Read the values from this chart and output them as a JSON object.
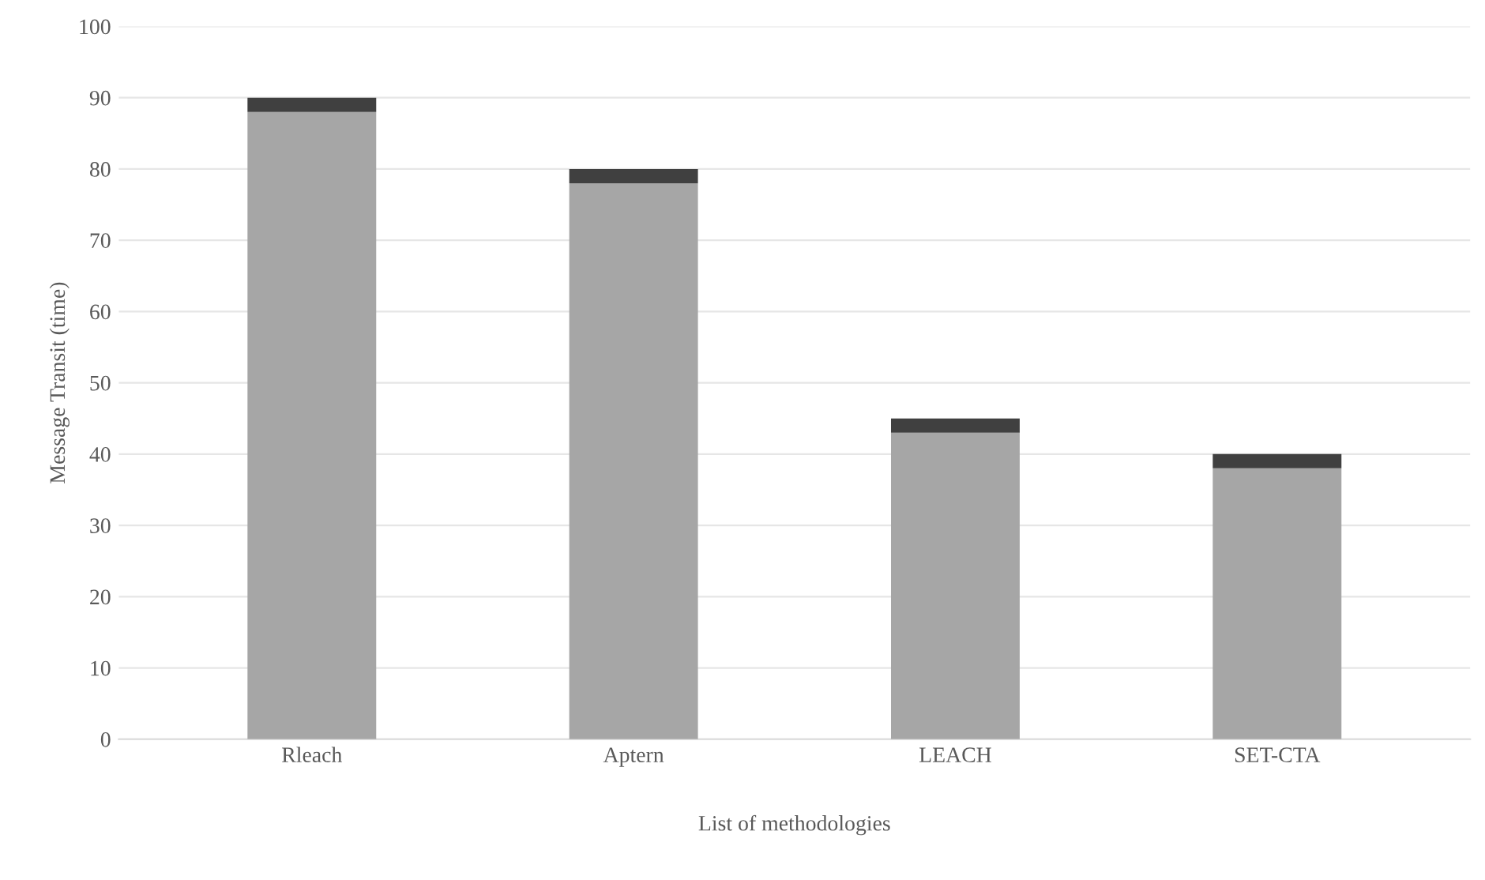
{
  "chart_data": {
    "type": "bar",
    "stacked": true,
    "xlabel": "List of methodologies",
    "ylabel": "Message Transit (time)",
    "categories": [
      "Rleach",
      "Aptern",
      "LEACH",
      "SET-CTA"
    ],
    "series": [
      {
        "color": "#a6a6a6",
        "values": [
          88,
          78,
          43,
          38
        ]
      },
      {
        "color": "#404040",
        "values": [
          2,
          2,
          2,
          2
        ]
      }
    ],
    "ylim": [
      0,
      100
    ],
    "yticks": [
      0,
      10,
      20,
      30,
      40,
      50,
      60,
      70,
      80,
      90,
      100
    ],
    "grid": "y",
    "legend": false
  }
}
